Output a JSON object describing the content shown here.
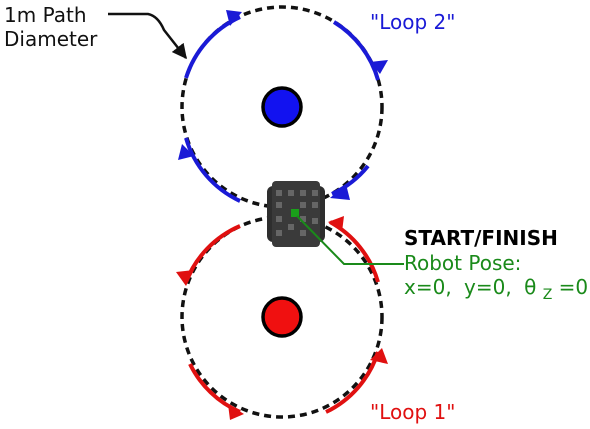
{
  "path_label": {
    "line1": "1m Path",
    "line2": "Diameter"
  },
  "loop2_label": "\"Loop 2\"",
  "loop1_label": "\"Loop 1\"",
  "start_finish": "START/FINISH",
  "robot_pose": {
    "heading": "Robot Pose:",
    "x_part": "x=0,",
    "y_part": "y=0,",
    "theta_symbol": "θ",
    "theta_subscript": "Z",
    "theta_value": "=0"
  },
  "colors": {
    "loop2": "#1a1ad6",
    "loop1": "#e01010",
    "pose": "#1a8a1a",
    "path": "#111111"
  },
  "icons": {
    "loop2_center": "blue-circle-marker",
    "loop1_center": "red-circle-marker",
    "robot": "robot-top-view-icon",
    "pose_point": "green-square-marker"
  }
}
